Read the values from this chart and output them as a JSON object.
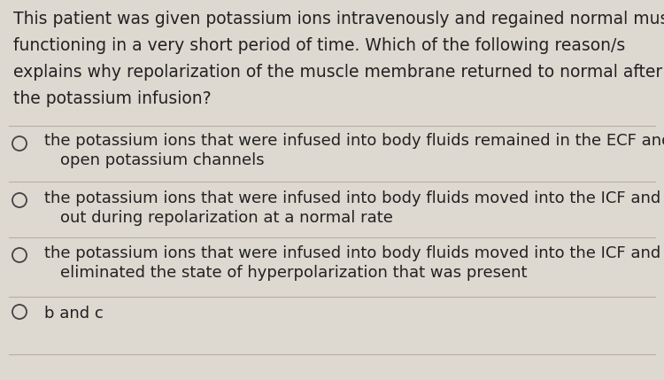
{
  "background_color": "#ddd8d0",
  "text_color": "#222222",
  "question_text_lines": [
    "This patient was given potassium ions intravenously and regained normal muscle",
    "functioning in a very short period of time. Which of the following reason/s",
    "explains why repolarization of the muscle membrane returned to normal after",
    "the potassium infusion?"
  ],
  "options": [
    [
      "the potassium ions that were infused into body fluids remained in the ECF and helped",
      "open potassium channels"
    ],
    [
      "the potassium ions that were infused into body fluids moved into the ICF and diffused",
      "out during repolarization at a normal rate"
    ],
    [
      "the potassium ions that were infused into body fluids moved into the ICF and",
      "eliminated the state of hyperpolarization that was present"
    ],
    [
      "b and c"
    ]
  ],
  "question_fontsize": 13.5,
  "option_fontsize": 13.0,
  "divider_color": "#b8b0a4",
  "circle_color": "#444444",
  "fig_width": 7.5,
  "fig_height": 4.29,
  "dpi": 100
}
